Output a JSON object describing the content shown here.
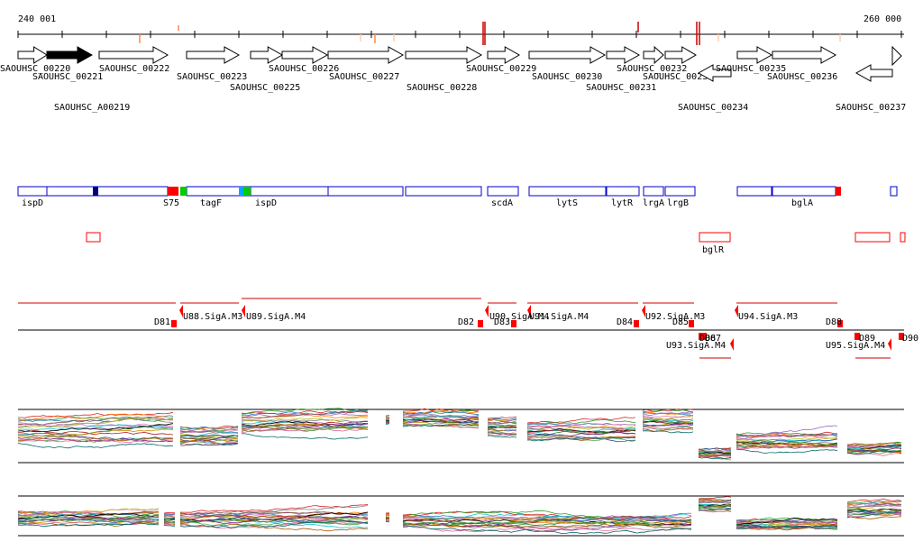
{
  "coords": {
    "start": "240 001",
    "end": "260 000"
  },
  "genes": [
    {
      "label": "SAOUHSC_00220",
      "dir": "+",
      "filled": false
    },
    {
      "label": "SAOUHSC_00221",
      "dir": "+",
      "filled": true
    },
    {
      "label": "SAOUHSC_00222",
      "dir": "+",
      "filled": false
    },
    {
      "label": "SAOUHSC_A00219",
      "dir": "+",
      "filled": false
    },
    {
      "label": "SAOUHSC_00223",
      "dir": "+",
      "filled": false
    },
    {
      "label": "SAOUHSC_00225",
      "dir": "+",
      "filled": false
    },
    {
      "label": "SAOUHSC_00226",
      "dir": "+",
      "filled": false
    },
    {
      "label": "SAOUHSC_00227",
      "dir": "+",
      "filled": false
    },
    {
      "label": "SAOUHSC_00228",
      "dir": "+",
      "filled": false
    },
    {
      "label": "SAOUHSC_00229",
      "dir": "+",
      "filled": false
    },
    {
      "label": "SAOUHSC_00230",
      "dir": "+",
      "filled": false
    },
    {
      "label": "SAOUHSC_00231",
      "dir": "+",
      "filled": false
    },
    {
      "label": "SAOUHSC_00232",
      "dir": "+",
      "filled": false
    },
    {
      "label": "SAOUHSC_00233",
      "dir": "+",
      "filled": false
    },
    {
      "label": "SAOUHSC_00234",
      "dir": "-",
      "filled": false
    },
    {
      "label": "SAOUHSC_00235",
      "dir": "+",
      "filled": false
    },
    {
      "label": "SAOUHSC_00236",
      "dir": "+",
      "filled": false
    },
    {
      "label": "SAOUHSC_00237",
      "dir": "-",
      "filled": false
    }
  ],
  "gene_names": [
    "ispD",
    "S75",
    "tagF",
    "ispD",
    "scdA",
    "lytS",
    "lytR",
    "lrgA",
    "lrgB",
    "bglA"
  ],
  "regulators": [
    "bglR"
  ],
  "segments": [
    "D81",
    "U88.SigA.M3",
    "U89.SigA.M4",
    "D82",
    "U90.SigA.M4",
    "D83",
    "U91.SigA.M4",
    "D84",
    "U92.SigA.M3",
    "D85",
    "D86",
    "D87",
    "U93.SigA.M4",
    "U94.SigA.M3",
    "D88",
    "D89",
    "U95.SigA.M4",
    "D90"
  ],
  "colors": {
    "arrow_stroke": "#000000",
    "domain_stroke": "#0000cc",
    "mark_red": "#ff0000",
    "mark_green": "#00cc00",
    "mark_cyan": "#00aaff",
    "mark_navy": "#000080",
    "segment_line": "#cc0000",
    "tick_orange": "#ff8844"
  }
}
